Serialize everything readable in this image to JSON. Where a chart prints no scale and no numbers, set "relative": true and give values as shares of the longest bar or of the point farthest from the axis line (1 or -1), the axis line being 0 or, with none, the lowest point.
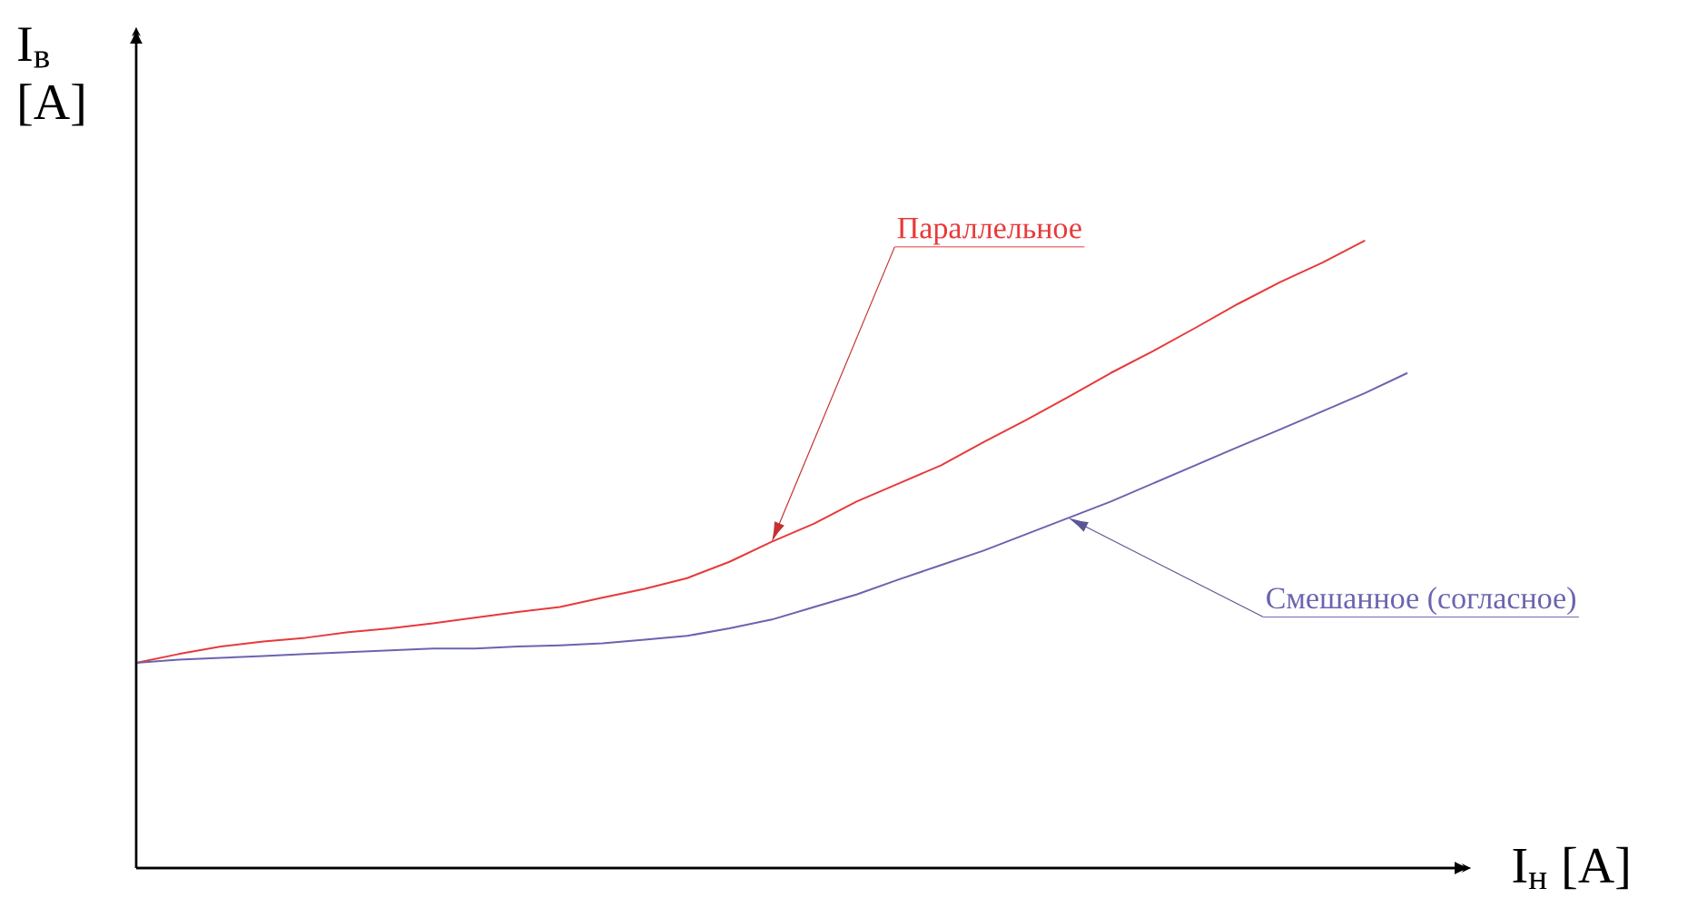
{
  "chart_data": {
    "type": "line",
    "relative": true,
    "xlabel": "I$_{н}$ [A]",
    "ylabel": "I$_{в}$ [A]",
    "categories": [
      null,
      null,
      null,
      null,
      null,
      null,
      null,
      null,
      null,
      null,
      null,
      null,
      null,
      null,
      null,
      null,
      null,
      null,
      null,
      null,
      null,
      null,
      null,
      null,
      null,
      null,
      null,
      null,
      null,
      null,
      null
    ],
    "series": [
      {
        "name": "Параллельное",
        "color": "#e8393a",
        "values": [
          0.327,
          0.341,
          0.353,
          0.361,
          0.367,
          0.376,
          0.382,
          0.39,
          0.399,
          0.408,
          0.416,
          0.431,
          0.445,
          0.462,
          0.488,
          0.52,
          0.549,
          0.584,
          0.613,
          0.642,
          0.679,
          0.714,
          0.751,
          0.789,
          0.824,
          0.861,
          0.899,
          0.934,
          0.965,
          1,
          null
        ]
      },
      {
        "name": "Смешанное (согласное)",
        "color": "#6a64b0",
        "values": [
          0.327,
          0.332,
          0.335,
          0.338,
          0.341,
          0.344,
          0.347,
          0.35,
          0.35,
          0.353,
          0.355,
          0.358,
          0.364,
          0.37,
          0.382,
          0.396,
          0.416,
          0.436,
          0.46,
          0.483,
          0.506,
          0.532,
          0.558,
          0.584,
          0.613,
          0.642,
          0.671,
          0.699,
          0.728,
          0.757,
          0.789
        ]
      }
    ]
  }
}
